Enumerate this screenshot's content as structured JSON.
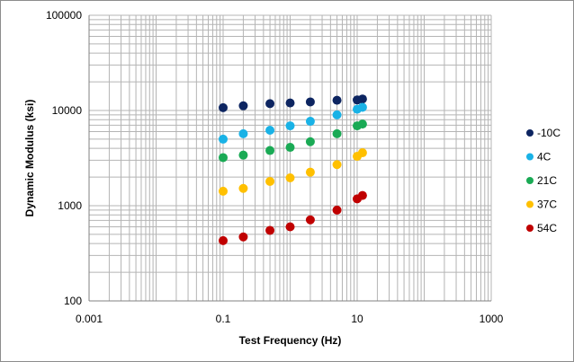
{
  "chart_data": {
    "type": "scatter",
    "xlabel": "Test Frequency (Hz)",
    "ylabel": "Dynamic Modulus (ksi)",
    "x_scale": "log",
    "y_scale": "log",
    "xlim": [
      0.001,
      1000
    ],
    "ylim": [
      100,
      100000
    ],
    "x_ticks": [
      "0.001",
      "0.1",
      "10",
      "1000"
    ],
    "y_ticks": [
      "100",
      "1000",
      "10000",
      "100000"
    ],
    "grid": true,
    "legend_position": "right",
    "series": [
      {
        "name": "-10C",
        "color": "#0d2561",
        "points": [
          [
            0.1,
            10700
          ],
          [
            0.2,
            11200
          ],
          [
            0.5,
            11800
          ],
          [
            1,
            12000
          ],
          [
            2,
            12300
          ],
          [
            5,
            12800
          ],
          [
            10,
            12900
          ],
          [
            12,
            13200
          ]
        ]
      },
      {
        "name": "4C",
        "color": "#19b2e6",
        "points": [
          [
            0.1,
            5000
          ],
          [
            0.2,
            5700
          ],
          [
            0.5,
            6200
          ],
          [
            1,
            6900
          ],
          [
            2,
            7700
          ],
          [
            5,
            9000
          ],
          [
            10,
            10300
          ],
          [
            12,
            10800
          ]
        ]
      },
      {
        "name": "21C",
        "color": "#1aaa55",
        "points": [
          [
            0.1,
            3200
          ],
          [
            0.2,
            3400
          ],
          [
            0.5,
            3800
          ],
          [
            1,
            4100
          ],
          [
            2,
            4700
          ],
          [
            5,
            5700
          ],
          [
            10,
            6900
          ],
          [
            12,
            7200
          ]
        ]
      },
      {
        "name": "37C",
        "color": "#ffc000",
        "points": [
          [
            0.1,
            1420
          ],
          [
            0.2,
            1520
          ],
          [
            0.5,
            1800
          ],
          [
            1,
            1960
          ],
          [
            2,
            2250
          ],
          [
            5,
            2700
          ],
          [
            10,
            3300
          ],
          [
            12,
            3600
          ]
        ]
      },
      {
        "name": "54C",
        "color": "#c00000",
        "points": [
          [
            0.1,
            430
          ],
          [
            0.2,
            470
          ],
          [
            0.5,
            550
          ],
          [
            1,
            600
          ],
          [
            2,
            710
          ],
          [
            5,
            900
          ],
          [
            10,
            1180
          ],
          [
            12,
            1280
          ]
        ]
      }
    ]
  }
}
